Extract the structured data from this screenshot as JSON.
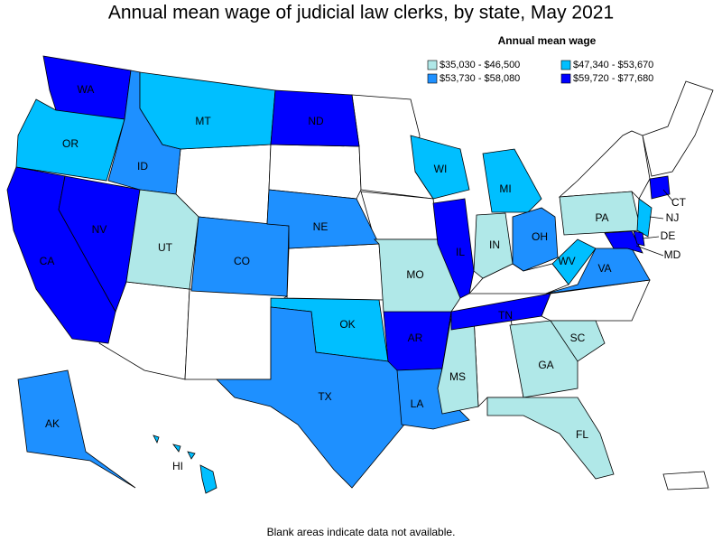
{
  "title": "Annual mean wage of judicial law clerks, by state, May 2021",
  "legend": {
    "title": "Annual mean wage",
    "items": [
      {
        "label": "$35,030 - $46,500",
        "color": "#b0e8e8"
      },
      {
        "label": "$47,340 - $53,670",
        "color": "#00bfff"
      },
      {
        "label": "$53,730 - $58,080",
        "color": "#1e90ff"
      },
      {
        "label": "$59,720 - $77,680",
        "color": "#0000ff"
      }
    ]
  },
  "states": [
    {
      "label": "WA",
      "color": "#0000ff"
    },
    {
      "label": "OR",
      "color": "#00bfff"
    },
    {
      "label": "CA",
      "color": "#0000ff"
    },
    {
      "label": "NV",
      "color": "#0000ff"
    },
    {
      "label": "ID",
      "color": "#1e90ff"
    },
    {
      "label": "MT",
      "color": "#00bfff"
    },
    {
      "label": "UT",
      "color": "#b0e8e8"
    },
    {
      "label": "CO",
      "color": "#1e90ff"
    },
    {
      "label": "ND",
      "color": "#0000ff"
    },
    {
      "label": "NE",
      "color": "#1e90ff"
    },
    {
      "label": "OK",
      "color": "#00bfff"
    },
    {
      "label": "TX",
      "color": "#1e90ff"
    },
    {
      "label": "AR",
      "color": "#0000ff"
    },
    {
      "label": "LA",
      "color": "#1e90ff"
    },
    {
      "label": "MS",
      "color": "#b0e8e8"
    },
    {
      "label": "MO",
      "color": "#b0e8e8"
    },
    {
      "label": "IL",
      "color": "#0000ff"
    },
    {
      "label": "IN",
      "color": "#b0e8e8"
    },
    {
      "label": "WI",
      "color": "#00bfff"
    },
    {
      "label": "MI",
      "color": "#00bfff"
    },
    {
      "label": "OH",
      "color": "#1e90ff"
    },
    {
      "label": "WV",
      "color": "#00bfff"
    },
    {
      "label": "VA",
      "color": "#1e90ff"
    },
    {
      "label": "TN",
      "color": "#0000ff"
    },
    {
      "label": "GA",
      "color": "#b0e8e8"
    },
    {
      "label": "SC",
      "color": "#b0e8e8"
    },
    {
      "label": "FL",
      "color": "#b0e8e8"
    },
    {
      "label": "PA",
      "color": "#b0e8e8"
    },
    {
      "label": "NJ",
      "color": "#00bfff"
    },
    {
      "label": "MD",
      "color": "#0000ff"
    },
    {
      "label": "DE",
      "color": "#0000ff"
    },
    {
      "label": "CT",
      "color": "#0000ff"
    },
    {
      "label": "AK",
      "color": "#1e90ff"
    },
    {
      "label": "HI",
      "color": "#00bfff"
    }
  ],
  "footnote": "Blank areas indicate data not available."
}
